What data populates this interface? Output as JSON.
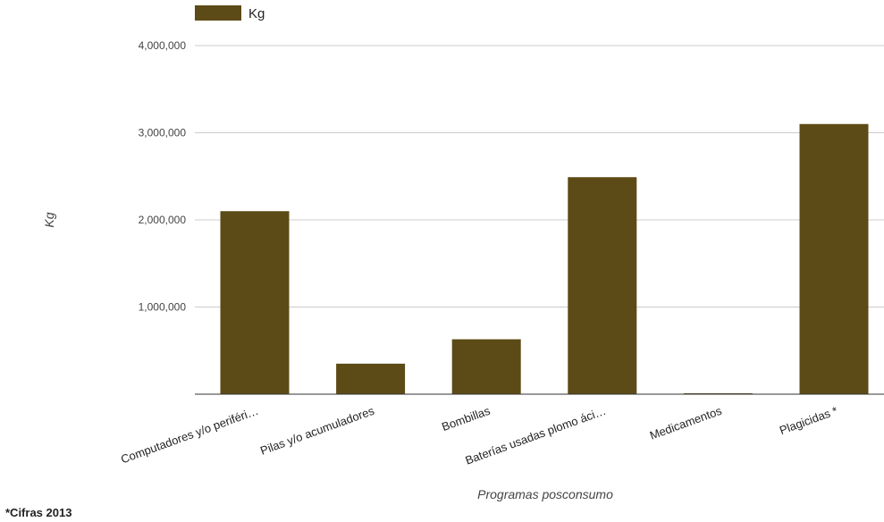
{
  "chart_data": {
    "type": "bar",
    "categories": [
      "Computadores y/o periféri…",
      "Pilas y/o acumuladores",
      "Bombillas",
      "Baterías usadas plomo áci…",
      "Medicamentos",
      "Plagicidas *"
    ],
    "series": [
      {
        "name": "Kg",
        "values": [
          2100000,
          350000,
          630000,
          2490000,
          5000,
          3100000
        ]
      }
    ],
    "xlabel": "Programas posconsumo",
    "ylabel": "Kg",
    "ylim": [
      0,
      4000000
    ],
    "yticks": [
      1000000,
      2000000,
      3000000,
      4000000
    ],
    "ytick_labels": [
      "1,000,000",
      "2,000,000",
      "3,000,000",
      "4,000,000"
    ],
    "grid": true,
    "legend_position": "top-left",
    "bar_color": "#5c4b16",
    "grid_color": "#cccccc"
  },
  "footnote": "*Cifras 2013"
}
